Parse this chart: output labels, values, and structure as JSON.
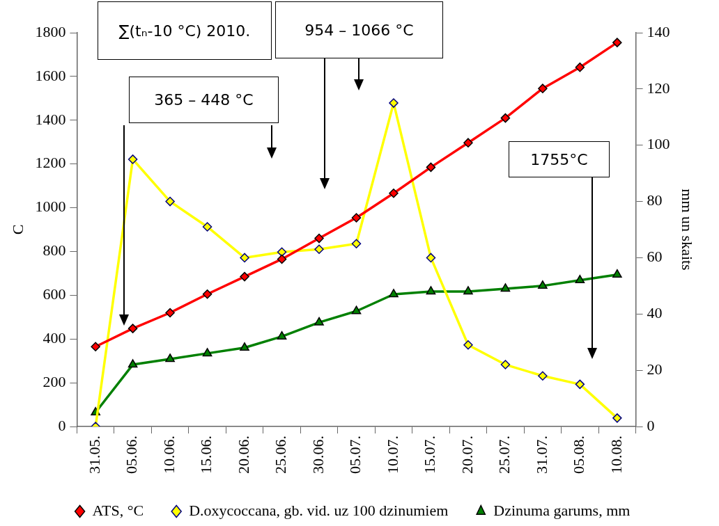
{
  "chart_data": {
    "type": "line",
    "ylabel": "C",
    "y2label": "mm un skaits",
    "categories": [
      "31.05.",
      "05.06.",
      "10.06.",
      "15.06.",
      "20.06.",
      "25.06.",
      "30.06.",
      "05.07.",
      "10.07.",
      "15.07.",
      "20.07.",
      "25.07.",
      "31.07.",
      "05.08.",
      "10.08."
    ],
    "series": [
      {
        "name": "ATS, °C",
        "color": "#ff0000",
        "marker": "diamond",
        "values": [
          365,
          448,
          520,
          605,
          685,
          765,
          860,
          954,
          1066,
          1185,
          1297,
          1410,
          1545,
          1642,
          1755
        ]
      },
      {
        "name": "D.oxycoccana, gb. vid. uz 100 dzinumiem",
        "color": "#ffff00",
        "marker": "diamond",
        "axis": "y2",
        "values": [
          0,
          95,
          80,
          71,
          60,
          62,
          63,
          65,
          115,
          60,
          29,
          22,
          18,
          15,
          3
        ]
      },
      {
        "name": "Dzinuma garums, mm",
        "color": "#008000",
        "marker": "triangle",
        "axis": "y2",
        "values": [
          5,
          22,
          24,
          26,
          28,
          32,
          37,
          41,
          47,
          48,
          48,
          49,
          50,
          52,
          54
        ]
      }
    ],
    "ylim": [
      0,
      1800
    ],
    "yticks": [
      0,
      200,
      400,
      600,
      800,
      1000,
      1200,
      1400,
      1600,
      1800
    ],
    "y2lim": [
      0,
      140
    ],
    "y2ticks": [
      0,
      20,
      40,
      60,
      80,
      100,
      120,
      140
    ],
    "grid": false,
    "legend": "bottom",
    "line_style": "solid",
    "annotations": [
      "∑(tₙ-10 °C) 2010.",
      "365 – 448 °C",
      "954 – 1066 °C",
      "1755°C"
    ]
  }
}
